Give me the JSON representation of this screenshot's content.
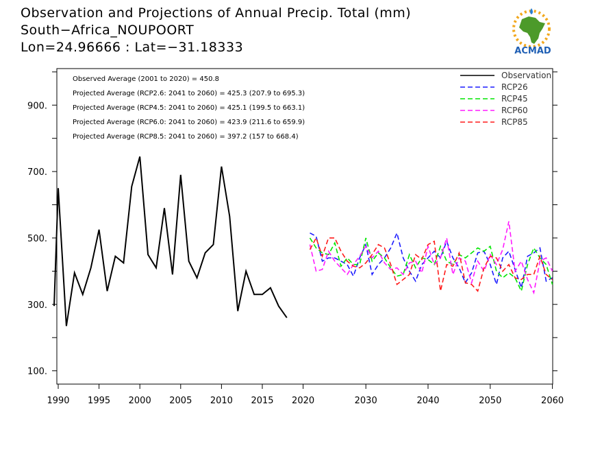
{
  "header": {
    "line1": "Observation and Projections of Annual Precip. Total (mm)",
    "line2": "South−Africa_NOUPOORT",
    "line3": "Lon=24.96666 : Lat=−31.18333"
  },
  "logo": {
    "text": "ACMAD",
    "icon": "africa-continent-logo"
  },
  "colors": {
    "Observation": "#000000",
    "RCP26": "#1a1aff",
    "RCP45": "#00e600",
    "RCP60": "#ff1aff",
    "RCP85": "#ff1a1a"
  },
  "chart_data": {
    "type": "line",
    "title": "Observation and Projections of Annual Precip. Total (mm)",
    "xlabel": "",
    "ylabel": "",
    "xlim": [
      1989.5,
      2060
    ],
    "ylim": [
      60,
      1010
    ],
    "grid": false,
    "legend_position": "top-right",
    "x_ticks_obs": [
      1990,
      1995,
      2000,
      2005,
      2010,
      2015,
      2020
    ],
    "x_ticks_proj": [
      2030,
      2040,
      2050,
      2060
    ],
    "x_tick_labels": [
      "1990",
      "1995",
      "2000",
      "2005",
      "2010",
      "2015",
      "2020",
      "2030",
      "2040",
      "2050",
      "2060"
    ],
    "y_ticks": [
      100,
      300,
      500,
      700,
      900
    ],
    "y_tick_labels": [
      "100.",
      "300.",
      "500.",
      "700.",
      "900."
    ],
    "annotations": [
      "Observed Average (2001 to 2020) = 450.8",
      "Projected Average (RCP2.6: 2041 to 2060) = 425.3 (207.9 to 695.3)",
      "Projected Average (RCP4.5: 2041 to 2060) = 425.1 (199.5 to 663.1)",
      "Projected Average (RCP6.0: 2041 to 2060) = 423.9 (211.6 to 659.9)",
      "Projected Average (RCP8.5: 2041 to 2060) = 397.2 (157 to 668.4)"
    ],
    "legend": [
      "Observation",
      "RCP26",
      "RCP45",
      "RCP60",
      "RCP85"
    ],
    "series": [
      {
        "name": "Observation",
        "style": "solid",
        "x": [
          1989.5,
          1990,
          1991,
          1992,
          1993,
          1994,
          1995,
          1996,
          1997,
          1998,
          1999,
          2000,
          2001,
          2002,
          2003,
          2004,
          2005,
          2006,
          2007,
          2008,
          2009,
          2010,
          2011,
          2012,
          2013,
          2014,
          2015,
          2016,
          2017,
          2018,
          2019,
          2020
        ],
        "values": [
          295,
          650,
          235,
          395,
          330,
          410,
          525,
          340,
          445,
          425,
          655,
          745,
          450,
          410,
          590,
          390,
          690,
          430,
          380,
          455,
          480,
          715,
          565,
          280,
          400,
          330,
          330,
          350,
          295,
          260,
          null,
          null
        ]
      },
      {
        "name": "RCP26",
        "style": "dashed",
        "start_year": 2021,
        "values": [
          515,
          505,
          430,
          440,
          440,
          430,
          420,
          385,
          440,
          480,
          390,
          420,
          440,
          470,
          515,
          440,
          400,
          370,
          420,
          440,
          460,
          440,
          490,
          440,
          410,
          365,
          395,
          455,
          460,
          420,
          360,
          440,
          460,
          405,
          350,
          445,
          455,
          470,
          370,
          380
        ]
      },
      {
        "name": "RCP45",
        "style": "dashed",
        "start_year": 2021,
        "values": [
          500,
          470,
          455,
          450,
          485,
          415,
          440,
          420,
          420,
          500,
          430,
          455,
          440,
          410,
          385,
          390,
          450,
          410,
          440,
          435,
          420,
          475,
          430,
          420,
          450,
          440,
          455,
          470,
          460,
          475,
          400,
          380,
          395,
          380,
          340,
          420,
          470,
          440,
          420,
          360
        ]
      },
      {
        "name": "RCP60",
        "style": "dashed",
        "start_year": 2021,
        "values": [
          480,
          400,
          405,
          460,
          430,
          410,
          390,
          420,
          445,
          475,
          440,
          460,
          425,
          405,
          410,
          390,
          425,
          430,
          395,
          475,
          420,
          440,
          500,
          390,
          440,
          430,
          365,
          430,
          400,
          450,
          420,
          465,
          550,
          400,
          430,
          375,
          335,
          430,
          440,
          400
        ]
      },
      {
        "name": "RCP85",
        "style": "dashed",
        "start_year": 2021,
        "values": [
          465,
          500,
          445,
          500,
          500,
          460,
          430,
          415,
          410,
          425,
          450,
          480,
          470,
          420,
          360,
          375,
          390,
          450,
          435,
          480,
          490,
          340,
          420,
          415,
          455,
          365,
          360,
          340,
          410,
          445,
          440,
          400,
          420,
          380,
          375,
          390,
          390,
          445,
          390,
          375
        ]
      }
    ]
  }
}
